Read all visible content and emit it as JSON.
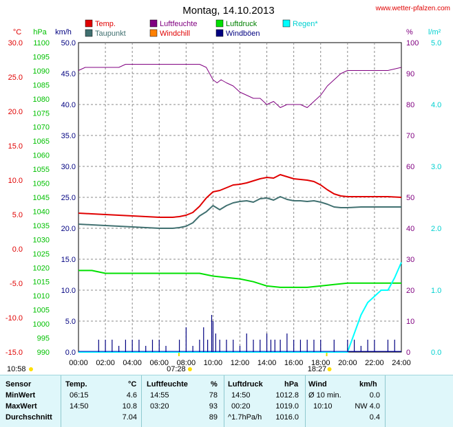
{
  "chart_data": {
    "type": "line",
    "title": "Montag, 14.10.2013",
    "source": "www.wetter-pfalzen.com",
    "x_ticks": [
      "00:00",
      "02:00",
      "04:00",
      "06:00",
      "08:00",
      "10:00",
      "12:00",
      "14:00",
      "16:00",
      "18:00",
      "20:00",
      "22:00",
      "24:00"
    ],
    "sun": {
      "sunrise": "07:28",
      "sunset": "18:27",
      "moonrise": "10:58"
    },
    "axes": {
      "temp": {
        "unit": "°C",
        "range": [
          -15,
          30
        ],
        "step": 5,
        "color": "#e00000",
        "ticks": [
          "30.0",
          "25.0",
          "20.0",
          "15.0",
          "10.0",
          "5.0",
          "0.0",
          "-5.0",
          "-10.0",
          "-15.0"
        ]
      },
      "pressure": {
        "unit": "hPa",
        "range": [
          990,
          1100
        ],
        "step": 5,
        "color": "#00c000"
      },
      "wind": {
        "unit": "km/h",
        "range": [
          0,
          50
        ],
        "step": 5,
        "color": "#000080"
      },
      "humidity": {
        "unit": "%",
        "range": [
          0,
          100
        ],
        "step": 10,
        "color": "#800080"
      },
      "rain": {
        "unit": "l/m²",
        "range": [
          0,
          5
        ],
        "step": 1,
        "color": "#00d0d0",
        "ticks": [
          "5.0",
          "4.0",
          "3.0",
          "2.0",
          "1.0",
          "0.0"
        ]
      }
    },
    "legend": [
      {
        "label": "Temp.",
        "color": "#e00000"
      },
      {
        "label": "Luftfeuchte",
        "color": "#800080"
      },
      {
        "label": "Luftdruck",
        "color": "#00e000"
      },
      {
        "label": "Regen*",
        "color": "#00ffff"
      },
      {
        "label": "Taupunkt",
        "color": "#407070"
      },
      {
        "label": "Windchill",
        "color": "#ff8000"
      },
      {
        "label": "Windböen",
        "color": "#000080"
      }
    ],
    "series": [
      {
        "name": "Temp.",
        "axis": "temp",
        "color": "#e00000",
        "x": [
          0,
          1,
          2,
          3,
          4,
          5,
          6,
          6.5,
          7,
          7.5,
          8,
          8.5,
          9,
          9.5,
          10,
          10.5,
          11,
          11.5,
          12,
          12.5,
          13,
          13.5,
          14,
          14.5,
          15,
          15.5,
          16,
          16.5,
          17,
          17.5,
          18,
          18.5,
          19,
          19.5,
          20,
          21,
          22,
          23,
          24
        ],
        "y": [
          5.2,
          5.1,
          5.0,
          4.9,
          4.8,
          4.7,
          4.6,
          4.6,
          4.6,
          4.7,
          4.9,
          5.3,
          6.2,
          7.4,
          8.3,
          8.5,
          8.9,
          9.3,
          9.4,
          9.6,
          9.9,
          10.2,
          10.4,
          10.3,
          10.8,
          10.5,
          10.2,
          10.1,
          10.0,
          9.8,
          9.3,
          8.6,
          8.0,
          7.7,
          7.6,
          7.6,
          7.6,
          7.6,
          7.5
        ]
      },
      {
        "name": "Taupunkt",
        "axis": "temp",
        "color": "#407070",
        "x": [
          0,
          1,
          2,
          3,
          4,
          5,
          6,
          6.5,
          7,
          7.5,
          8,
          8.5,
          9,
          9.5,
          10,
          10.5,
          11,
          11.5,
          12,
          12.5,
          13,
          13.5,
          14,
          14.5,
          15,
          15.5,
          16,
          16.5,
          17,
          17.5,
          18,
          18.5,
          19,
          19.5,
          20,
          21,
          22,
          23,
          24
        ],
        "y": [
          3.6,
          3.5,
          3.4,
          3.3,
          3.2,
          3.1,
          3.0,
          3.0,
          3.0,
          3.1,
          3.3,
          3.8,
          4.8,
          5.4,
          6.3,
          5.7,
          6.3,
          6.7,
          6.9,
          7.0,
          6.8,
          7.3,
          7.4,
          7.1,
          7.6,
          7.2,
          7.0,
          7.0,
          6.9,
          7.0,
          6.8,
          6.5,
          6.1,
          6.0,
          6.0,
          6.1,
          6.1,
          6.1,
          6.1
        ]
      },
      {
        "name": "Luftfeuchte",
        "axis": "humidity",
        "color": "#800080",
        "x": [
          0,
          0.5,
          1,
          2,
          3,
          3.5,
          4,
          5,
          6,
          7,
          8,
          9,
          9.5,
          10,
          10.3,
          10.6,
          11,
          11.5,
          12,
          12.5,
          13,
          13.5,
          14,
          14.5,
          15,
          15.5,
          16,
          16.5,
          17,
          17.5,
          18,
          18.5,
          19,
          19.5,
          20,
          21,
          22,
          23,
          24
        ],
        "y": [
          91,
          92,
          92,
          92,
          92,
          93,
          93,
          93,
          93,
          93,
          93,
          93,
          92,
          88,
          87,
          88,
          87,
          86,
          84,
          83,
          82,
          82,
          80,
          81,
          79,
          80,
          80,
          80,
          79,
          81,
          83,
          86,
          88,
          90,
          91,
          91,
          91,
          91,
          92
        ]
      },
      {
        "name": "Luftdruck",
        "axis": "pressure",
        "color": "#00e000",
        "x": [
          0,
          1,
          2,
          3,
          4,
          5,
          6,
          7,
          8,
          9,
          10,
          11,
          12,
          13,
          14,
          15,
          16,
          17,
          18,
          19,
          20,
          21,
          22,
          23,
          24
        ],
        "y": [
          1019.0,
          1019.0,
          1018.0,
          1018.0,
          1018.0,
          1018.0,
          1018.0,
          1018.0,
          1018.0,
          1018.0,
          1017.0,
          1016.5,
          1016.0,
          1015.0,
          1013.5,
          1013.0,
          1013.0,
          1013.0,
          1013.5,
          1014.0,
          1014.5,
          1014.5,
          1014.5,
          1014.5,
          1014.5
        ]
      },
      {
        "name": "Regen*",
        "axis": "rain",
        "color": "#00ffff",
        "x": [
          0,
          20,
          20.5,
          21,
          21.5,
          22,
          22.5,
          23,
          23.5,
          24
        ],
        "y": [
          0,
          0,
          0.3,
          0.6,
          0.8,
          0.9,
          1.0,
          1.0,
          1.2,
          1.45
        ]
      },
      {
        "name": "Windböen",
        "axis": "wind",
        "color": "#000080",
        "type": "bars",
        "x": [
          1.5,
          2,
          2.5,
          3,
          3.5,
          4,
          4.5,
          5,
          5.5,
          6,
          6.5,
          7.5,
          8,
          8.5,
          9,
          9.3,
          9.6,
          9.9,
          10,
          10.2,
          10.5,
          11,
          11.5,
          12,
          12.5,
          13,
          13.5,
          14,
          14.3,
          14.6,
          15,
          15.5,
          16,
          16.5,
          17,
          17.5,
          18,
          19,
          20,
          20.5,
          21,
          21.5,
          22,
          23,
          23.5
        ],
        "y": [
          2.0,
          2.0,
          2.0,
          1.0,
          2.0,
          2.0,
          2.0,
          1.0,
          2.0,
          2.0,
          1.0,
          2.0,
          4.0,
          1.0,
          2.0,
          4.0,
          2.0,
          6.0,
          5.0,
          3.0,
          2.0,
          2.0,
          2.0,
          1.0,
          3.0,
          2.0,
          2.0,
          3.0,
          2.0,
          2.0,
          2.0,
          3.0,
          2.0,
          2.0,
          2.0,
          2.0,
          2.0,
          2.0,
          2.0,
          2.0,
          1.0,
          2.0,
          2.0,
          2.0,
          2.0
        ]
      }
    ]
  },
  "stats": {
    "headers": {
      "sensor": "Sensor",
      "temp": "Temp.",
      "temp_unit": "°C",
      "hum": "Luftfeuchte",
      "hum_unit": "%",
      "press": "Luftdruck",
      "press_unit": "hPa",
      "wind": "Wind",
      "wind_unit": "km/h"
    },
    "min": {
      "label": "MinWert",
      "temp_time": "06:15",
      "temp": "4.6",
      "hum_time": "14:55",
      "hum": "78",
      "press_time": "14:50",
      "press": "1012.8",
      "wind_time": "Ø 10 min.",
      "wind": "0.0"
    },
    "max": {
      "label": "MaxWert",
      "temp_time": "14:50",
      "temp": "10.8",
      "hum_time": "03:20",
      "hum": "93",
      "press_time": "00:20",
      "press": "1019.0",
      "wind_time": "10:10",
      "wind": "NW 4.0"
    },
    "avg": {
      "label": "Durchschnitt",
      "temp": "7.04",
      "hum": "89",
      "press_time": "^1.7hPa/h",
      "press": "1016.0",
      "wind": "0.4"
    }
  }
}
